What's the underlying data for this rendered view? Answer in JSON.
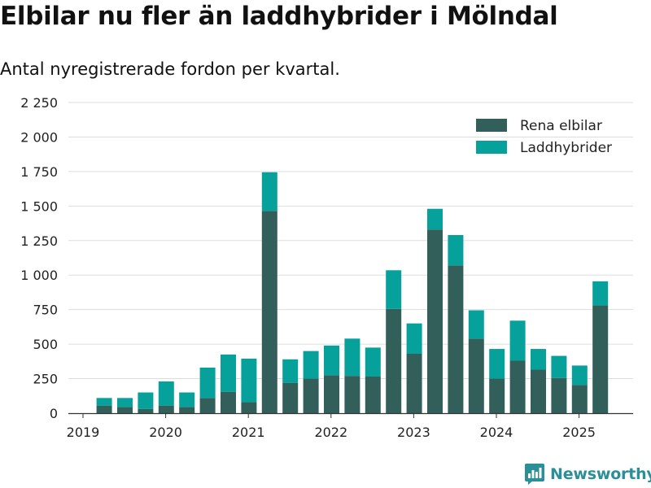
{
  "title": "Elbilar nu fler än laddhybrider i Mölndal",
  "subtitle": "Antal nyregistrerade fordon per kvartal.",
  "brand": {
    "name": "Newsworthy",
    "color": "#2a8f96",
    "icon": "bar-chart-logo-icon"
  },
  "chart_data": {
    "type": "bar",
    "stacked": true,
    "title": "Elbilar nu fler än laddhybrider i Mölndal",
    "subtitle": "Antal nyregistrerade fordon per kvartal.",
    "xlabel": "",
    "ylabel": "",
    "ylim": [
      0,
      2250
    ],
    "yticks": [
      0,
      250,
      500,
      750,
      1000,
      1250,
      1500,
      1750,
      2000,
      2250
    ],
    "ytick_labels": [
      "0",
      "250",
      "500",
      "750",
      "1 000",
      "1 250",
      "1 500",
      "1 750",
      "2 000",
      "2 250"
    ],
    "xlim": [
      "2019-Q1",
      "2025-Q3"
    ],
    "xtick_labels": [
      "2019",
      "2020",
      "2021",
      "2022",
      "2023",
      "2024",
      "2025"
    ],
    "grid": "horizontal",
    "legend_position": "top-right",
    "categories": [
      "2019-Q2",
      "2019-Q3",
      "2019-Q4",
      "2020-Q1",
      "2020-Q2",
      "2020-Q3",
      "2020-Q4",
      "2021-Q1",
      "2021-Q2",
      "2021-Q3",
      "2021-Q4",
      "2022-Q1",
      "2022-Q2",
      "2022-Q3",
      "2022-Q4",
      "2023-Q1",
      "2023-Q2",
      "2023-Q3",
      "2023-Q4",
      "2024-Q1",
      "2024-Q2",
      "2024-Q3",
      "2024-Q4",
      "2025-Q1",
      "2025-Q2"
    ],
    "series": [
      {
        "name": "Rena elbilar",
        "color": "#335f5b",
        "values": [
          55,
          45,
          30,
          55,
          45,
          110,
          155,
          80,
          1465,
          220,
          250,
          275,
          270,
          265,
          755,
          430,
          1330,
          1070,
          540,
          250,
          380,
          315,
          255,
          205,
          780
        ]
      },
      {
        "name": "Laddhybrider",
        "color": "#06a19b",
        "values": [
          55,
          65,
          120,
          175,
          105,
          220,
          270,
          315,
          280,
          170,
          200,
          215,
          270,
          210,
          280,
          220,
          150,
          220,
          205,
          215,
          290,
          150,
          160,
          140,
          175
        ]
      }
    ]
  }
}
